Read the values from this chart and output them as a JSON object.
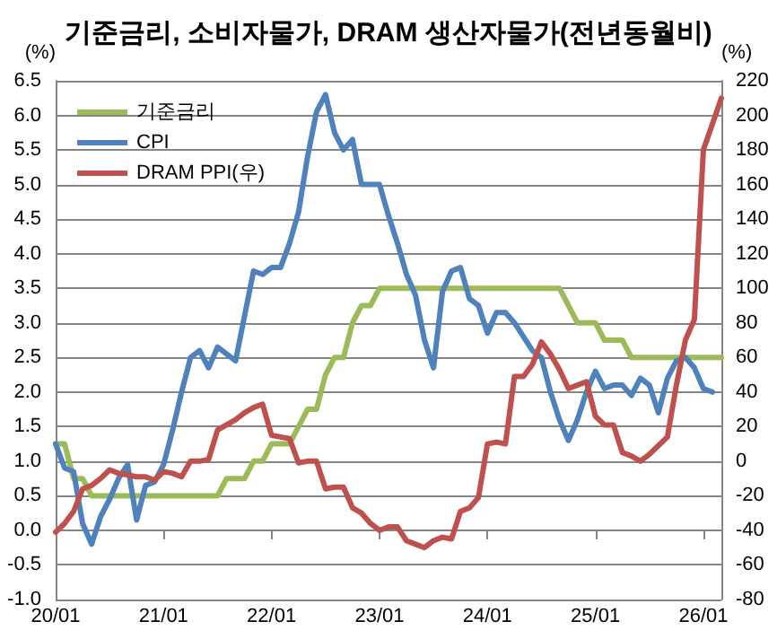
{
  "chart_data": {
    "type": "line",
    "title": "기준금리, 소비자물가, DRAM 생산자물가(전년동월비)",
    "ylabel": "(%)",
    "y2label": "(%)",
    "categories": [
      "20/01",
      null,
      null,
      null,
      null,
      null,
      null,
      null,
      null,
      null,
      null,
      null,
      "21/01",
      null,
      null,
      null,
      null,
      null,
      null,
      null,
      null,
      null,
      null,
      null,
      "22/01",
      null,
      null,
      null,
      null,
      null,
      null,
      null,
      null,
      null,
      null,
      null,
      "23/01",
      null,
      null,
      null,
      null,
      null,
      null,
      null,
      null,
      null,
      null,
      null,
      "24/01",
      null,
      null,
      null,
      null,
      null,
      null,
      null,
      null,
      null,
      null,
      null,
      "25/01",
      null,
      null,
      null,
      null,
      null,
      null,
      null,
      null,
      null,
      null,
      null,
      "26/01",
      null,
      null
    ],
    "series": [
      {
        "name": "기준금리",
        "color": "#9bbb59",
        "values": [
          1.25,
          1.25,
          0.75,
          0.75,
          0.5,
          0.5,
          0.5,
          0.5,
          0.5,
          0.5,
          0.5,
          0.5,
          0.5,
          0.5,
          0.5,
          0.5,
          0.5,
          0.5,
          0.5,
          0.75,
          0.75,
          0.75,
          1.0,
          1.0,
          1.25,
          1.25,
          1.25,
          1.5,
          1.75,
          1.75,
          2.25,
          2.5,
          2.5,
          3.0,
          3.25,
          3.25,
          3.5,
          3.5,
          3.5,
          3.5,
          3.5,
          3.5,
          3.5,
          3.5,
          3.5,
          3.5,
          3.5,
          3.5,
          3.5,
          3.5,
          3.5,
          3.5,
          3.5,
          3.5,
          3.5,
          3.5,
          3.5,
          3.25,
          3.0,
          3.0,
          3.0,
          2.75,
          2.75,
          2.75,
          2.5,
          2.5,
          2.5,
          2.5,
          2.5,
          2.5,
          2.5,
          2.5,
          2.5,
          2.5,
          2.5
        ]
      },
      {
        "name": "CPI",
        "color": "#4f81bd",
        "values": [
          1.25,
          0.9,
          0.85,
          0.1,
          -0.2,
          0.2,
          0.45,
          0.75,
          0.95,
          0.15,
          0.65,
          0.7,
          0.95,
          1.45,
          2.0,
          2.5,
          2.6,
          2.35,
          2.65,
          2.55,
          2.45,
          3.1,
          3.75,
          3.7,
          3.8,
          3.8,
          4.15,
          4.6,
          5.4,
          6.05,
          6.3,
          5.75,
          5.5,
          5.65,
          5.0,
          5.0,
          5.0,
          4.55,
          4.15,
          3.7,
          3.4,
          2.75,
          2.35,
          3.45,
          3.75,
          3.8,
          3.35,
          3.25,
          2.85,
          3.15,
          3.15,
          3.0,
          2.8,
          2.6,
          2.5,
          2.0,
          1.6,
          1.3,
          1.6,
          2.0,
          2.3,
          2.05,
          2.1,
          2.1,
          1.95,
          2.2,
          2.1,
          1.7,
          2.2,
          2.45,
          2.5,
          2.35,
          2.05,
          2.0,
          null
        ]
      },
      {
        "name": "DRAM PPI(우)",
        "color": "#c0504d",
        "axis": "y2",
        "values": [
          -41,
          -36,
          -29,
          -16,
          -14,
          -10,
          -5,
          -7,
          -8,
          -9,
          -9,
          -11,
          -6,
          -7,
          -9,
          0,
          0,
          1,
          18,
          21,
          24,
          28,
          31,
          33,
          15,
          14,
          13,
          -1,
          0,
          0,
          -16,
          -15,
          -15,
          -27,
          -30,
          -36,
          -40,
          -38,
          -38,
          -46,
          -48,
          -50,
          -46,
          -44,
          -45,
          -29,
          -27,
          -21,
          10,
          11,
          10,
          49,
          49,
          56,
          69,
          62,
          53,
          42,
          44,
          46,
          26,
          21,
          21,
          5,
          3,
          0,
          4,
          9,
          14,
          44,
          70,
          82,
          180,
          195,
          210
        ]
      }
    ],
    "ylim": [
      -1.0,
      6.5
    ],
    "yticks": [
      {
        "value": -1,
        "label": "-1.0"
      },
      {
        "value": -0.5,
        "label": "-0.5"
      },
      {
        "value": 0,
        "label": "0.0"
      },
      {
        "value": 0.5,
        "label": "0.5"
      },
      {
        "value": 1,
        "label": "1.0"
      },
      {
        "value": 1.5,
        "label": "1.5"
      },
      {
        "value": 2,
        "label": "2.0"
      },
      {
        "value": 2.5,
        "label": "2.5"
      },
      {
        "value": 3,
        "label": "3.0"
      },
      {
        "value": 3.5,
        "label": "3.5"
      },
      {
        "value": 4,
        "label": "4.0"
      },
      {
        "value": 4.5,
        "label": "4.5"
      },
      {
        "value": 5,
        "label": "5.0"
      },
      {
        "value": 5.5,
        "label": "5.5"
      },
      {
        "value": 6,
        "label": "6.0"
      },
      {
        "value": 6.5,
        "label": "6.5"
      }
    ],
    "y2lim": [
      -80,
      220
    ],
    "y2ticks": [
      -80,
      -60,
      -40,
      -20,
      0,
      20,
      40,
      60,
      80,
      100,
      120,
      140,
      160,
      180,
      200,
      220
    ],
    "grid": "y",
    "legend": "top left",
    "marker": "none",
    "line_style": "solid"
  }
}
